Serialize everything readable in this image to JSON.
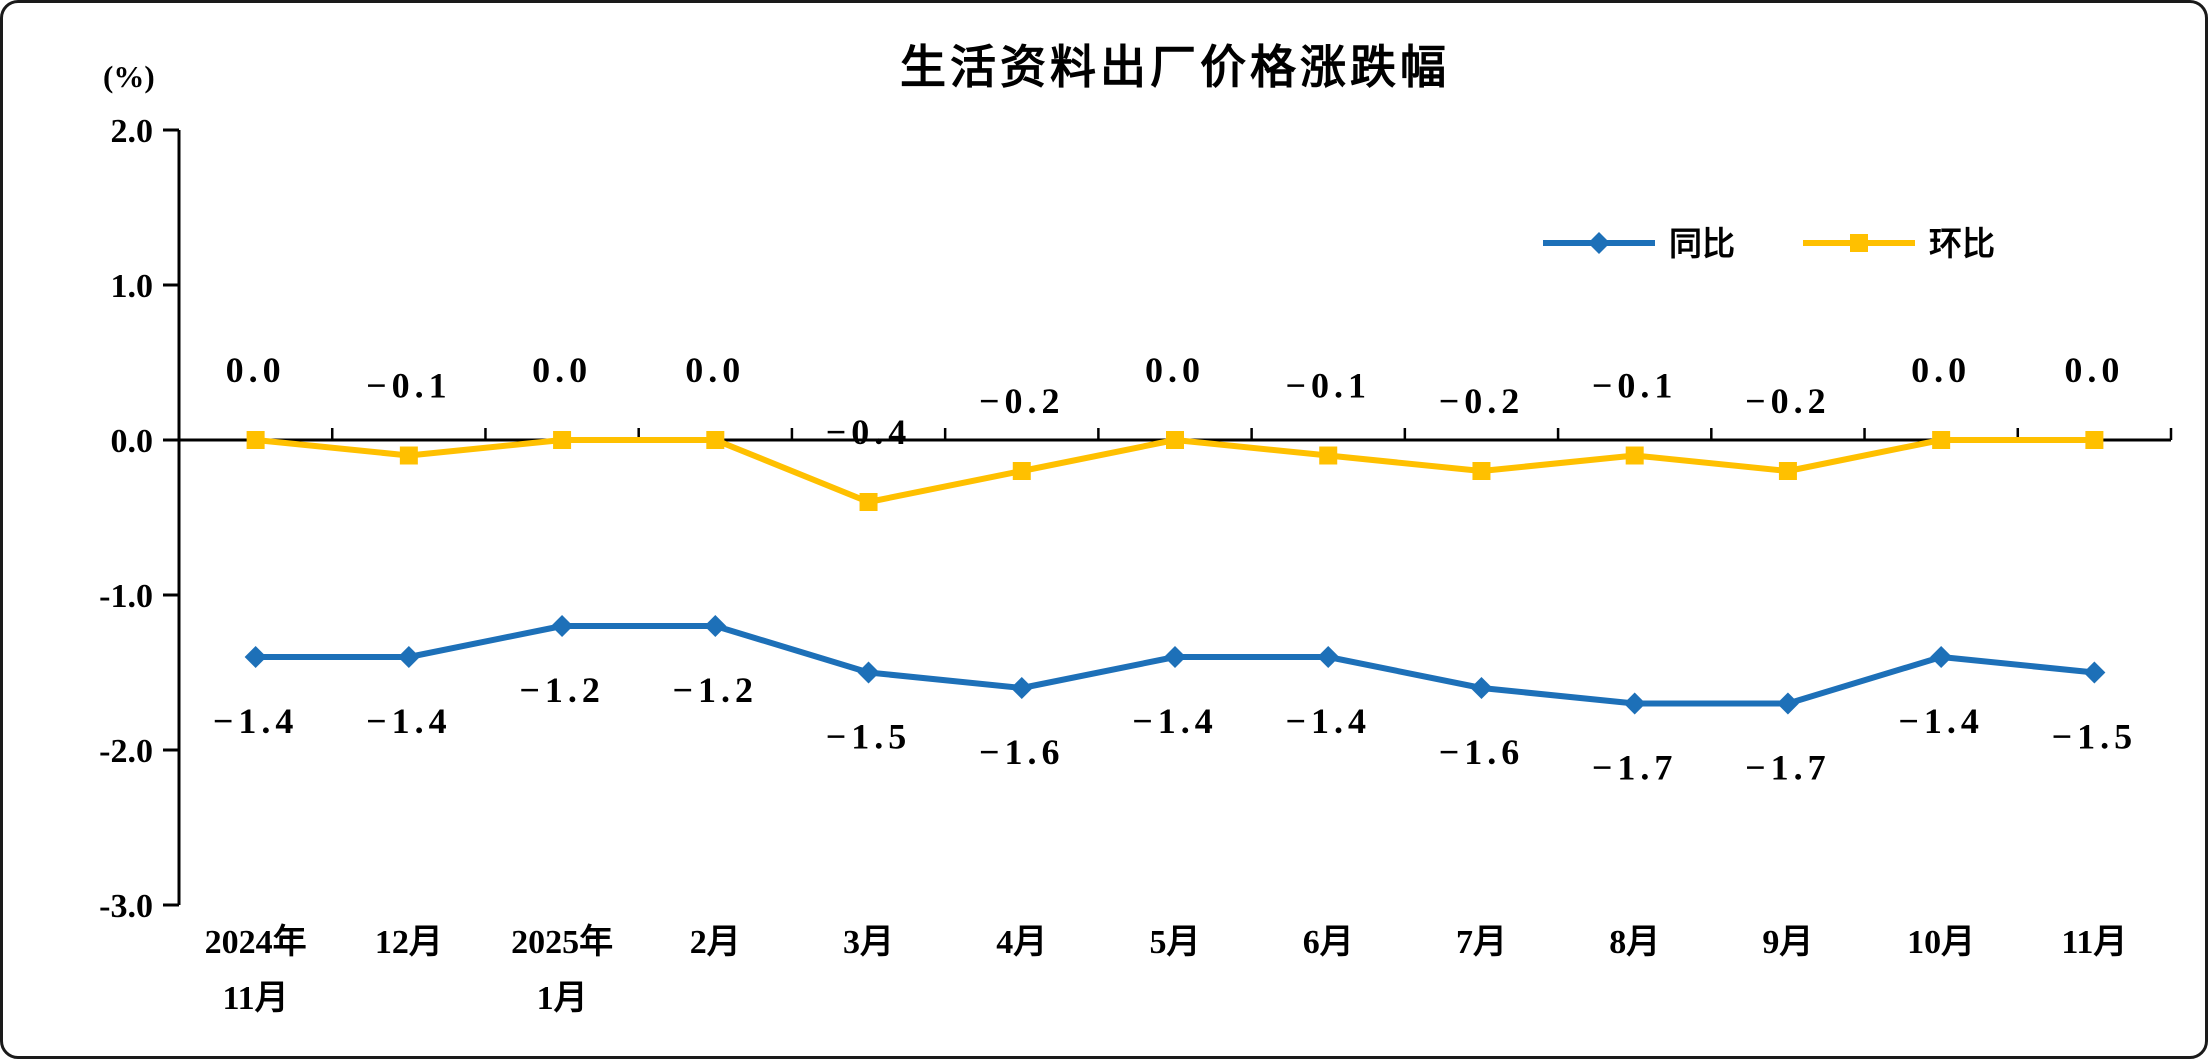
{
  "chart_data": {
    "type": "line",
    "title": "生活资料出厂价格涨跌幅",
    "unit": "(%)",
    "grid": false,
    "legend_position": "top-right",
    "categories": [
      [
        "2024年",
        "11月"
      ],
      [
        "12月"
      ],
      [
        "2025年",
        "1月"
      ],
      [
        "2月"
      ],
      [
        "3月"
      ],
      [
        "4月"
      ],
      [
        "5月"
      ],
      [
        "6月"
      ],
      [
        "7月"
      ],
      [
        "8月"
      ],
      [
        "9月"
      ],
      [
        "10月"
      ],
      [
        "11月"
      ]
    ],
    "y_axis": {
      "min": -3.0,
      "max": 2.0,
      "tick_interval": 1.0,
      "ticks": [
        {
          "value": 2.0,
          "label": "2.0"
        },
        {
          "value": 1.0,
          "label": "1.0"
        },
        {
          "value": 0.0,
          "label": "0.0"
        },
        {
          "value": -1.0,
          "label": "-1.0"
        },
        {
          "value": -2.0,
          "label": "-2.0"
        },
        {
          "value": -3.0,
          "label": "-3.0"
        }
      ]
    },
    "series": [
      {
        "id": "yoy",
        "name": "同比",
        "color": "#1D70B8",
        "marker": "diamond",
        "label_position": "below",
        "values": [
          -1.4,
          -1.4,
          -1.2,
          -1.2,
          -1.5,
          -1.6,
          -1.4,
          -1.4,
          -1.6,
          -1.7,
          -1.7,
          -1.4,
          -1.5
        ],
        "labels": [
          "−1.4",
          "−1.4",
          "−1.2",
          "−1.2",
          "−1.5",
          "−1.6",
          "−1.4",
          "−1.4",
          "−1.6",
          "−1.7",
          "−1.7",
          "−1.4",
          "−1.5"
        ]
      },
      {
        "id": "mom",
        "name": "环比",
        "color": "#FFC000",
        "marker": "square",
        "label_position": "above",
        "values": [
          0.0,
          -0.1,
          0.0,
          0.0,
          -0.4,
          -0.2,
          0.0,
          -0.1,
          -0.2,
          -0.1,
          -0.2,
          0.0,
          0.0
        ],
        "labels": [
          "0.0",
          "−0.1",
          "0.0",
          "0.0",
          "−0.4",
          "−0.2",
          "0.0",
          "−0.1",
          "−0.2",
          "−0.1",
          "−0.2",
          "0.0",
          "0.0"
        ]
      }
    ],
    "axis_color": "#000000"
  }
}
